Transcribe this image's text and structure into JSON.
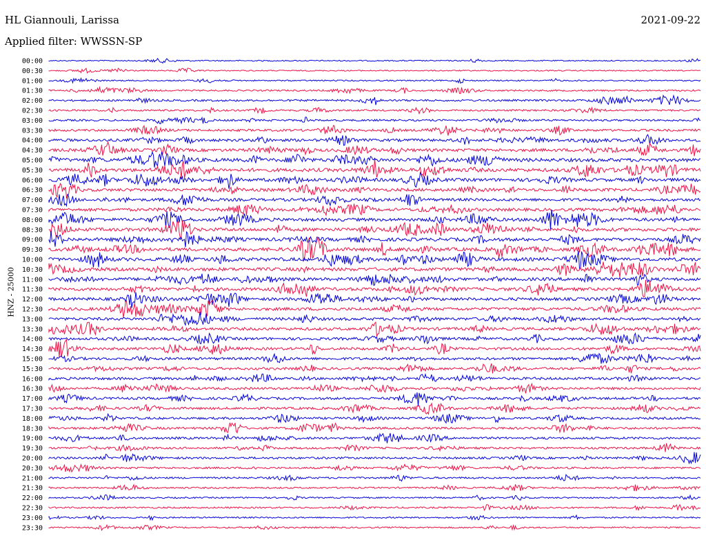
{
  "header": {
    "station": "HL Giannouli, Larissa",
    "date": "2021-09-22",
    "filter": "Applied filter: WWSSN-SP"
  },
  "chart_data": {
    "type": "line",
    "title": "HL Giannouli, Larissa",
    "ylabel": "HNZ - 25000",
    "row_interval_minutes": 30,
    "row_labels": [
      "00:00",
      "00:30",
      "01:00",
      "01:30",
      "02:00",
      "02:30",
      "03:00",
      "03:30",
      "04:00",
      "04:30",
      "05:00",
      "05:30",
      "06:00",
      "06:30",
      "07:00",
      "07:30",
      "08:00",
      "08:30",
      "09:00",
      "09:30",
      "10:00",
      "10:30",
      "11:00",
      "11:30",
      "12:00",
      "12:30",
      "13:00",
      "13:30",
      "14:00",
      "14:30",
      "15:00",
      "15:30",
      "16:00",
      "16:30",
      "17:00",
      "17:30",
      "18:00",
      "18:30",
      "19:00",
      "19:30",
      "20:00",
      "20:30",
      "21:00",
      "21:30",
      "22:00",
      "22:30",
      "23:00",
      "23:30"
    ],
    "row_activity": [
      0.1,
      0.1,
      0.15,
      0.25,
      0.35,
      0.3,
      0.35,
      0.45,
      0.6,
      0.7,
      0.85,
      0.85,
      0.75,
      0.7,
      0.65,
      0.7,
      0.75,
      0.8,
      0.8,
      0.85,
      0.85,
      0.8,
      0.75,
      0.75,
      0.7,
      0.7,
      0.65,
      0.65,
      0.6,
      0.6,
      0.55,
      0.55,
      0.55,
      0.5,
      0.5,
      0.5,
      0.45,
      0.45,
      0.45,
      0.4,
      0.4,
      0.35,
      0.3,
      0.25,
      0.2,
      0.25,
      0.2,
      0.2
    ],
    "colors": [
      "#0000dd",
      "#ee1144"
    ],
    "legend": "none",
    "grid": false
  }
}
